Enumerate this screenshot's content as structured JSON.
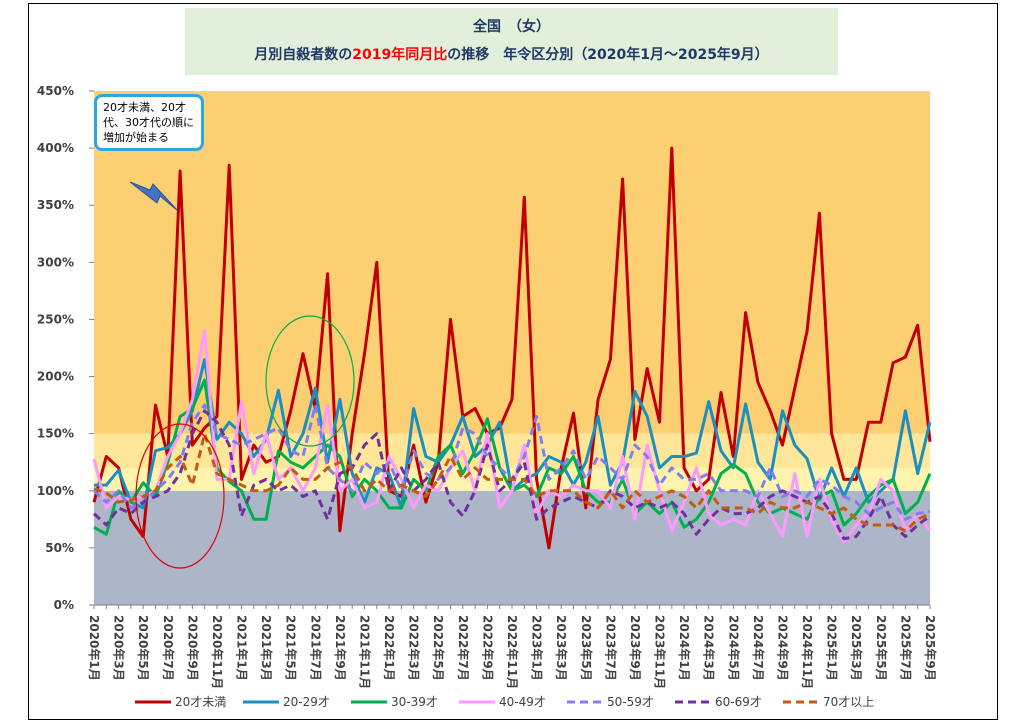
{
  "chart_data": {
    "type": "line",
    "title": "全国　（女）",
    "subtitle_parts": [
      {
        "text": "月別自殺者数の",
        "color": "#1f3864"
      },
      {
        "text": "2019年同月比",
        "color": "#ff0000"
      },
      {
        "text": "の推移　年令区分別（2020年1月～2025年9月）",
        "color": "#1f3864"
      }
    ],
    "annotation": "20才未満、20才代、30才代の順に増加が始まる",
    "categories": [
      "2020年1月",
      null,
      "2020年3月",
      null,
      "2020年5月",
      null,
      "2020年7月",
      null,
      "2020年9月",
      null,
      "2020年11月",
      null,
      "2021年1月",
      null,
      "2021年3月",
      null,
      "2021年5月",
      null,
      "2021年7月",
      null,
      "2021年9月",
      null,
      "2021年11月",
      null,
      "2022年1月",
      null,
      "2022年3月",
      null,
      "2022年5月",
      null,
      "2022年7月",
      null,
      "2022年9月",
      null,
      "2022年11月",
      null,
      "2023年1月",
      null,
      "2023年3月",
      null,
      "2023年5月",
      null,
      "2023年7月",
      null,
      "2023年9月",
      null,
      "2023年11月",
      null,
      "2024年1月",
      null,
      "2024年3月",
      null,
      "2024年5月",
      null,
      "2024年7月",
      null,
      "2024年9月",
      null,
      "2024年11月",
      null,
      "2025年1月",
      null,
      "2025年3月",
      null,
      "2025年5月",
      null,
      "2025年7月",
      null,
      "2025年9月"
    ],
    "series": [
      {
        "name": "20才未満",
        "color": "#c00000",
        "dashed": false,
        "values": [
          90,
          130,
          120,
          75,
          60,
          175,
          130,
          380,
          140,
          155,
          165,
          385,
          110,
          140,
          125,
          130,
          170,
          220,
          172,
          290,
          65,
          150,
          220,
          300,
          100,
          95,
          140,
          90,
          125,
          250,
          165,
          172,
          150,
          155,
          180,
          357,
          110,
          50,
          120,
          168,
          85,
          180,
          215,
          373,
          145,
          207,
          160,
          400,
          120,
          100,
          110,
          186,
          130,
          256,
          195,
          170,
          140,
          190,
          240,
          343,
          150,
          110,
          110,
          160,
          160,
          212,
          217,
          245,
          143
        ]
      },
      {
        "name": "20-29才",
        "color": "#1a8fc0",
        "dashed": false,
        "values": [
          105,
          105,
          118,
          90,
          85,
          135,
          138,
          150,
          170,
          215,
          145,
          160,
          150,
          130,
          145,
          188,
          130,
          150,
          190,
          125,
          180,
          115,
          90,
          120,
          115,
          85,
          172,
          130,
          125,
          140,
          165,
          130,
          140,
          160,
          100,
          110,
          115,
          130,
          125,
          105,
          125,
          165,
          105,
          125,
          187,
          165,
          120,
          130,
          130,
          133,
          178,
          135,
          120,
          176,
          125,
          110,
          170,
          140,
          128,
          92,
          120,
          95,
          120,
          90,
          100,
          110,
          170,
          115,
          160
        ]
      },
      {
        "name": "30-39才",
        "color": "#00b050",
        "dashed": false,
        "values": [
          68,
          62,
          100,
          90,
          107,
          95,
          125,
          165,
          172,
          197,
          120,
          108,
          100,
          75,
          75,
          135,
          125,
          120,
          130,
          140,
          130,
          95,
          110,
          100,
          85,
          85,
          110,
          100,
          130,
          140,
          115,
          135,
          163,
          120,
          100,
          105,
          95,
          120,
          115,
          130,
          100,
          90,
          90,
          110,
          80,
          90,
          80,
          90,
          68,
          75,
          90,
          115,
          123,
          115,
          90,
          80,
          85,
          80,
          75,
          95,
          100,
          70,
          80,
          95,
          105,
          110,
          80,
          90,
          115
        ]
      },
      {
        "name": "40-49才",
        "color": "#ff99ff",
        "dashed": false,
        "values": [
          128,
          85,
          95,
          92,
          95,
          100,
          130,
          150,
          180,
          240,
          110,
          110,
          178,
          115,
          150,
          110,
          120,
          100,
          120,
          175,
          100,
          110,
          85,
          90,
          130,
          110,
          85,
          105,
          100,
          120,
          135,
          100,
          150,
          85,
          100,
          140,
          80,
          100,
          95,
          105,
          100,
          100,
          85,
          130,
          75,
          140,
          100,
          65,
          90,
          120,
          80,
          70,
          75,
          70,
          100,
          80,
          60,
          115,
          60,
          110,
          75,
          55,
          70,
          80,
          110,
          100,
          65,
          80,
          65
        ]
      },
      {
        "name": "50-59才",
        "color": "#7f7ff0",
        "dashed": true,
        "values": [
          100,
          90,
          100,
          85,
          90,
          100,
          110,
          125,
          160,
          175,
          150,
          145,
          140,
          145,
          150,
          155,
          135,
          130,
          175,
          120,
          110,
          100,
          125,
          115,
          125,
          100,
          135,
          115,
          110,
          120,
          155,
          150,
          130,
          120,
          110,
          130,
          165,
          110,
          120,
          135,
          110,
          130,
          120,
          110,
          140,
          130,
          105,
          120,
          110,
          110,
          115,
          100,
          100,
          100,
          95,
          120,
          95,
          100,
          95,
          110,
          105,
          95,
          90,
          80,
          85,
          90,
          75,
          80,
          82
        ]
      },
      {
        "name": "60-69才",
        "color": "#7030a0",
        "dashed": true,
        "values": [
          80,
          70,
          85,
          80,
          90,
          95,
          100,
          115,
          150,
          170,
          160,
          140,
          78,
          105,
          110,
          100,
          105,
          95,
          100,
          75,
          115,
          120,
          140,
          150,
          100,
          120,
          100,
          110,
          125,
          90,
          78,
          100,
          140,
          100,
          110,
          125,
          75,
          85,
          90,
          95,
          90,
          85,
          100,
          95,
          85,
          90,
          85,
          90,
          80,
          62,
          75,
          85,
          80,
          80,
          85,
          95,
          100,
          95,
          90,
          95,
          80,
          58,
          60,
          75,
          95,
          70,
          60,
          70,
          78
        ]
      },
      {
        "name": "70才以上",
        "color": "#c55a11",
        "dashed": true,
        "values": [
          102,
          98,
          90,
          92,
          95,
          100,
          120,
          130,
          105,
          150,
          115,
          110,
          105,
          100,
          100,
          105,
          120,
          110,
          110,
          120,
          125,
          120,
          100,
          110,
          100,
          105,
          100,
          95,
          110,
          130,
          110,
          120,
          110,
          110,
          110,
          110,
          95,
          100,
          100,
          100,
          90,
          85,
          100,
          85,
          100,
          90,
          95,
          100,
          95,
          85,
          100,
          85,
          85,
          85,
          80,
          90,
          85,
          85,
          90,
          85,
          80,
          85,
          75,
          70,
          70,
          70,
          65,
          75,
          80
        ]
      }
    ],
    "ylim": [
      0,
      450
    ],
    "yticks": [
      {
        "value": 0,
        "label": "0%"
      },
      {
        "value": 50,
        "label": "50%"
      },
      {
        "value": 100,
        "label": "100%"
      },
      {
        "value": 150,
        "label": "150%"
      },
      {
        "value": 200,
        "label": "200%"
      },
      {
        "value": 250,
        "label": "250%"
      },
      {
        "value": 300,
        "label": "300%"
      },
      {
        "value": 350,
        "label": "350%"
      },
      {
        "value": 400,
        "label": "400%"
      },
      {
        "value": 450,
        "label": "450%"
      }
    ],
    "bands": [
      {
        "from": 0,
        "to": 100,
        "color": "#adb5c8"
      },
      {
        "from": 100,
        "to": 120,
        "color": "#fff4ae"
      },
      {
        "from": 120,
        "to": 150,
        "color": "#ffe699"
      },
      {
        "from": 150,
        "to": 450,
        "color": "#fdcf73"
      }
    ],
    "grid": false
  }
}
